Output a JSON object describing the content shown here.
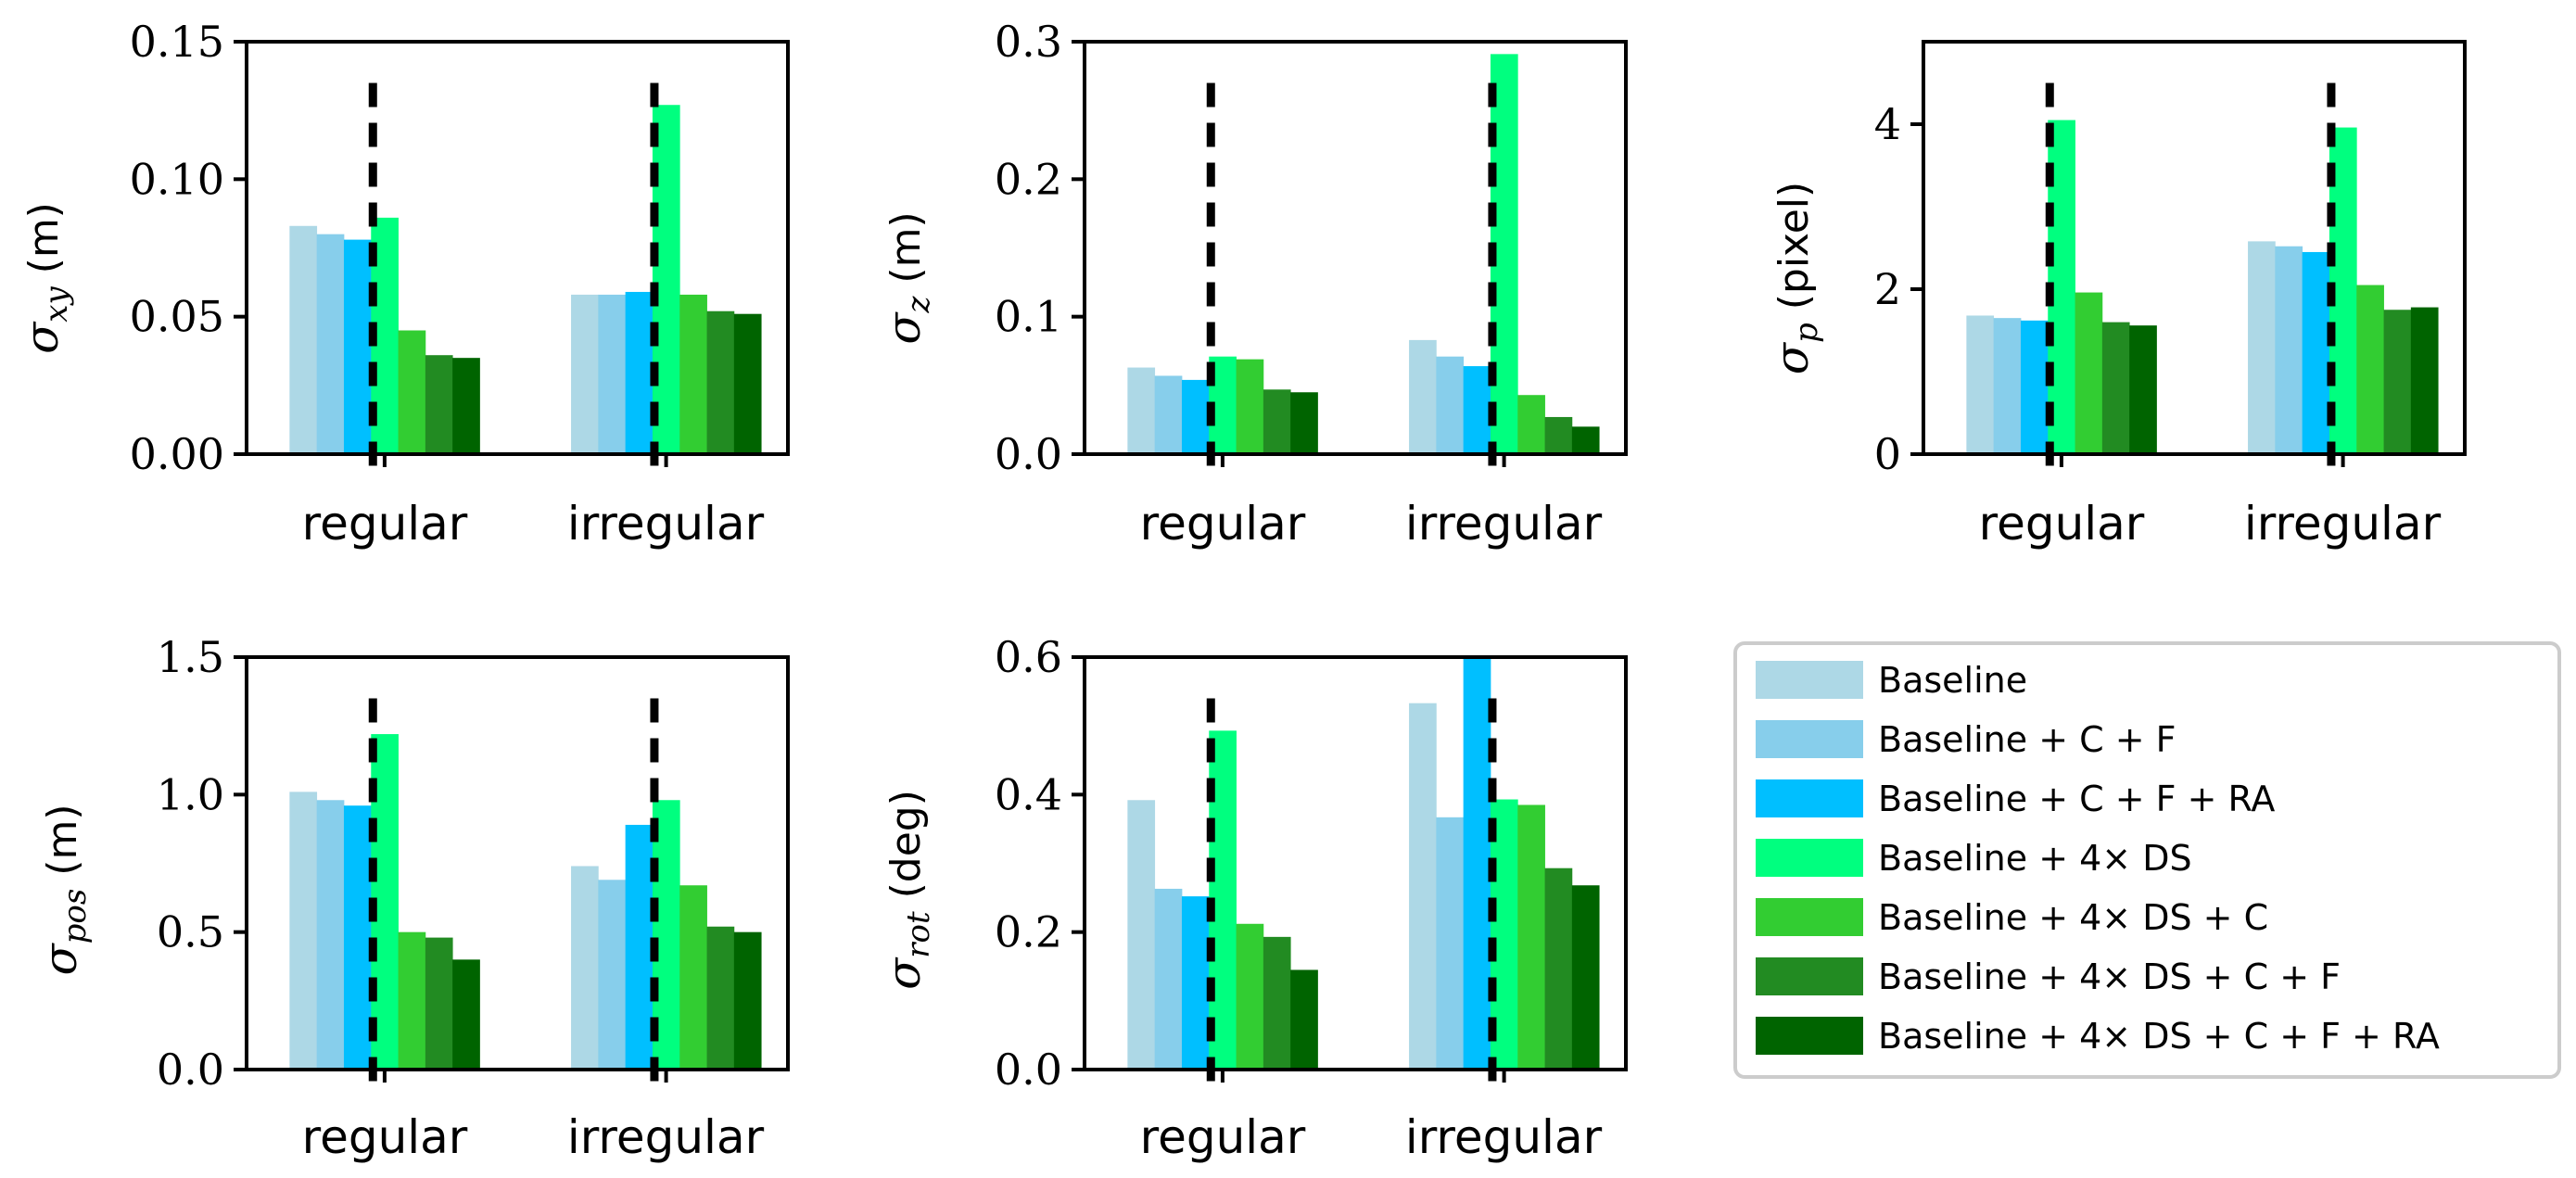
{
  "colors": [
    "#add8e6",
    "#87ceeb",
    "#00bfff",
    "#00ff7f",
    "#32cd32",
    "#228b22",
    "#006400"
  ],
  "legend": {
    "entries": [
      "Baseline",
      "Baseline + C + F",
      "Baseline + C + F + RA",
      "Baseline + 4× DS",
      "Baseline + 4× DS + C",
      "Baseline + 4× DS + C + F",
      "Baseline + 4× DS + C + F + RA"
    ]
  },
  "chart_data": [
    {
      "type": "bar",
      "title": "",
      "ylabel": {
        "symbol": "σ",
        "subscript": "xy",
        "unit": "(m)"
      },
      "categories": [
        "regular",
        "irregular"
      ],
      "ylim": [
        0,
        0.15
      ],
      "yticks": [
        0,
        0.05,
        0.1,
        0.15
      ],
      "ytick_labels": [
        "0.00",
        "0.05",
        "0.10",
        "0.15"
      ],
      "series": [
        {
          "name": "Baseline",
          "values": [
            0.083,
            0.058
          ]
        },
        {
          "name": "Baseline + C + F",
          "values": [
            0.08,
            0.058
          ]
        },
        {
          "name": "Baseline + C + F + RA",
          "values": [
            0.078,
            0.059
          ]
        },
        {
          "name": "Baseline + 4× DS",
          "values": [
            0.086,
            0.127
          ]
        },
        {
          "name": "Baseline + 4× DS + C",
          "values": [
            0.045,
            0.058
          ]
        },
        {
          "name": "Baseline + 4× DS + C + F",
          "values": [
            0.036,
            0.052
          ]
        },
        {
          "name": "Baseline + 4× DS + C + F + RA",
          "values": [
            0.035,
            0.051
          ]
        }
      ],
      "dashed_line_top": 0.135
    },
    {
      "type": "bar",
      "title": "",
      "ylabel": {
        "symbol": "σ",
        "subscript": "z",
        "unit": "(m)"
      },
      "categories": [
        "regular",
        "irregular"
      ],
      "ylim": [
        0,
        0.3
      ],
      "yticks": [
        0,
        0.1,
        0.2,
        0.3
      ],
      "ytick_labels": [
        "0.0",
        "0.1",
        "0.2",
        "0.3"
      ],
      "series": [
        {
          "name": "Baseline",
          "values": [
            0.063,
            0.083
          ]
        },
        {
          "name": "Baseline + C + F",
          "values": [
            0.057,
            0.071
          ]
        },
        {
          "name": "Baseline + C + F + RA",
          "values": [
            0.054,
            0.064
          ]
        },
        {
          "name": "Baseline + 4× DS",
          "values": [
            0.071,
            0.291
          ]
        },
        {
          "name": "Baseline + 4× DS + C",
          "values": [
            0.069,
            0.043
          ]
        },
        {
          "name": "Baseline + 4× DS + C + F",
          "values": [
            0.047,
            0.027
          ]
        },
        {
          "name": "Baseline + 4× DS + C + F + RA",
          "values": [
            0.045,
            0.02
          ]
        }
      ],
      "dashed_line_top": 0.27
    },
    {
      "type": "bar",
      "title": "",
      "ylabel": {
        "symbol": "σ",
        "subscript": "p",
        "unit": "(pixel)"
      },
      "categories": [
        "regular",
        "irregular"
      ],
      "ylim": [
        0,
        5
      ],
      "yticks": [
        0,
        2,
        4
      ],
      "ytick_labels": [
        "0",
        "2",
        "4"
      ],
      "series": [
        {
          "name": "Baseline",
          "values": [
            1.68,
            2.58
          ]
        },
        {
          "name": "Baseline + C + F",
          "values": [
            1.65,
            2.52
          ]
        },
        {
          "name": "Baseline + C + F + RA",
          "values": [
            1.62,
            2.45
          ]
        },
        {
          "name": "Baseline + 4× DS",
          "values": [
            4.05,
            3.96
          ]
        },
        {
          "name": "Baseline + 4× DS + C",
          "values": [
            1.96,
            2.05
          ]
        },
        {
          "name": "Baseline + 4× DS + C + F",
          "values": [
            1.6,
            1.75
          ]
        },
        {
          "name": "Baseline + 4× DS + C + F + RA",
          "values": [
            1.56,
            1.78
          ]
        }
      ],
      "dashed_line_top": 4.5
    },
    {
      "type": "bar",
      "title": "",
      "ylabel": {
        "symbol": "σ",
        "subscript": "pos",
        "unit": "(m)"
      },
      "categories": [
        "regular",
        "irregular"
      ],
      "ylim": [
        0,
        1.5
      ],
      "yticks": [
        0,
        0.5,
        1.0,
        1.5
      ],
      "ytick_labels": [
        "0.0",
        "0.5",
        "1.0",
        "1.5"
      ],
      "series": [
        {
          "name": "Baseline",
          "values": [
            1.01,
            0.74
          ]
        },
        {
          "name": "Baseline + C + F",
          "values": [
            0.98,
            0.69
          ]
        },
        {
          "name": "Baseline + C + F + RA",
          "values": [
            0.96,
            0.89
          ]
        },
        {
          "name": "Baseline + 4× DS",
          "values": [
            1.22,
            0.98
          ]
        },
        {
          "name": "Baseline + 4× DS + C",
          "values": [
            0.5,
            0.67
          ]
        },
        {
          "name": "Baseline + 4× DS + C + F",
          "values": [
            0.48,
            0.52
          ]
        },
        {
          "name": "Baseline + 4× DS + C + F + RA",
          "values": [
            0.4,
            0.5
          ]
        }
      ],
      "dashed_line_top": 1.35
    },
    {
      "type": "bar",
      "title": "",
      "ylabel": {
        "symbol": "σ",
        "subscript": "rot",
        "unit": "(deg)"
      },
      "categories": [
        "regular",
        "irregular"
      ],
      "ylim": [
        0,
        0.6
      ],
      "yticks": [
        0,
        0.2,
        0.4,
        0.6
      ],
      "ytick_labels": [
        "0.0",
        "0.2",
        "0.4",
        "0.6"
      ],
      "series": [
        {
          "name": "Baseline",
          "values": [
            0.392,
            0.533
          ]
        },
        {
          "name": "Baseline + C + F",
          "values": [
            0.263,
            0.367
          ]
        },
        {
          "name": "Baseline + C + F + RA",
          "values": [
            0.252,
            0.6
          ]
        },
        {
          "name": "Baseline + 4× DS",
          "values": [
            0.493,
            0.393
          ]
        },
        {
          "name": "Baseline + 4× DS + C",
          "values": [
            0.212,
            0.385
          ]
        },
        {
          "name": "Baseline + 4× DS + C + F",
          "values": [
            0.193,
            0.293
          ]
        },
        {
          "name": "Baseline + 4× DS + C + F + RA",
          "values": [
            0.145,
            0.268
          ]
        }
      ],
      "dashed_line_top": 0.54
    }
  ]
}
